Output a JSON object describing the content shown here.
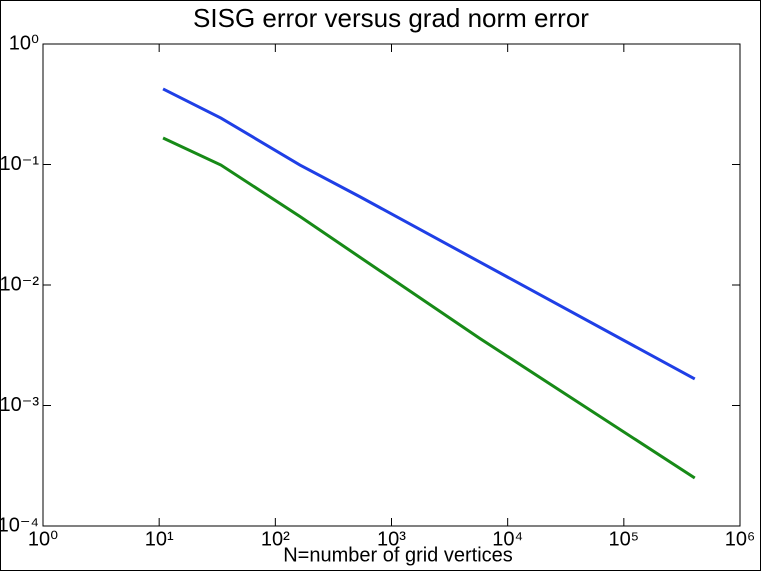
{
  "chart_data": {
    "type": "line",
    "title": "SISG error versus grad norm error",
    "x_label": "N=number of grid vertices",
    "x": [
      10.8,
      34,
      163,
      535,
      5770,
      408000
    ],
    "series": [
      {
        "color": "#1f3fe6",
        "values": [
          0.424,
          0.243,
          0.099,
          0.054,
          0.0155,
          0.00166
        ]
      },
      {
        "color": "#178a17",
        "values": [
          0.166,
          0.099,
          0.037,
          0.017,
          0.0036,
          0.00025
        ]
      }
    ],
    "xscale": "log",
    "yscale": "log",
    "xlim": [
      1,
      1000000
    ],
    "ylim": [
      0.0001,
      1
    ],
    "xticks": [
      {
        "value": 1,
        "label": "10⁰"
      },
      {
        "value": 10,
        "label": "10¹"
      },
      {
        "value": 100,
        "label": "10²"
      },
      {
        "value": 1000,
        "label": "10³"
      },
      {
        "value": 10000,
        "label": "10⁴"
      },
      {
        "value": 100000,
        "label": "10⁵"
      },
      {
        "value": 1000000,
        "label": "10⁶"
      }
    ],
    "yticks": [
      {
        "value": 0.0001,
        "label": "10⁻⁴"
      },
      {
        "value": 0.001,
        "label": "10⁻³"
      },
      {
        "value": 0.01,
        "label": "10⁻²"
      },
      {
        "value": 0.1,
        "label": "10⁻¹"
      },
      {
        "value": 1,
        "label": "10⁰"
      }
    ],
    "grid": false
  }
}
